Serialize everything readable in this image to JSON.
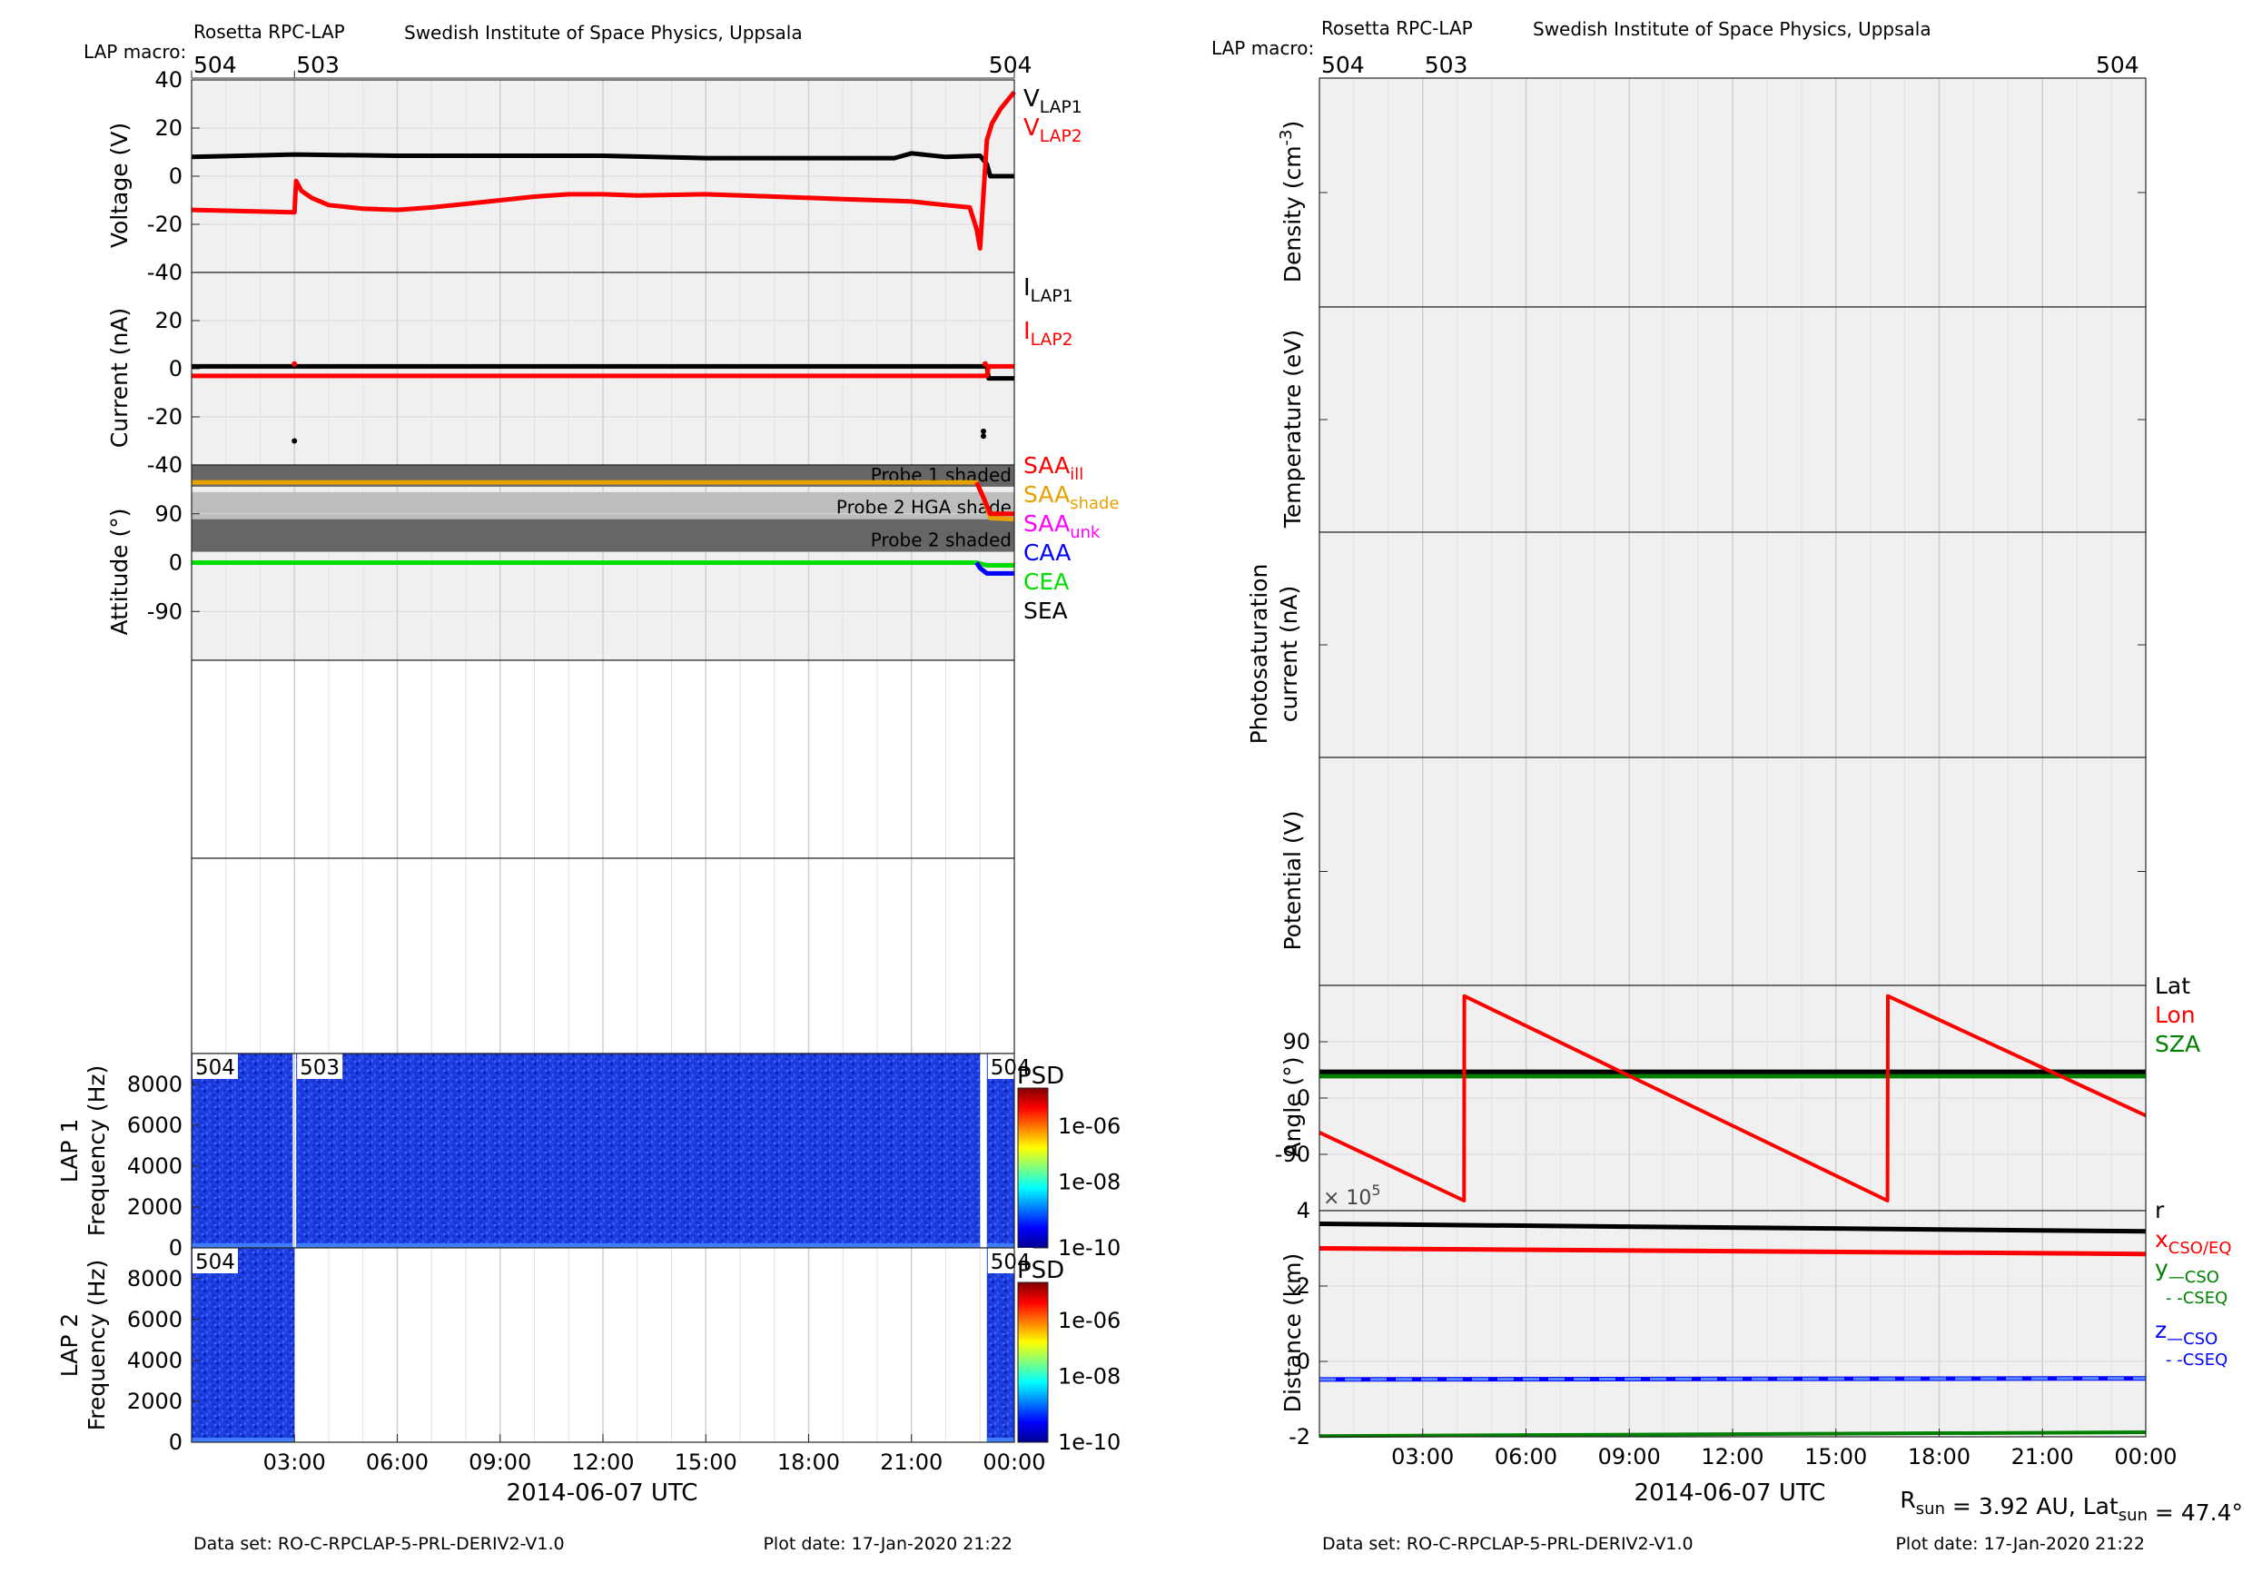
{
  "header": {
    "instrument": "Rosetta RPC-LAP",
    "institute": "Swedish Institute of Space Physics, Uppsala",
    "lap_macro_label": "LAP macro:"
  },
  "footer": {
    "dataset": "Data set: RO-C-RPCLAP-5-PRL-DERIV2-V1.0",
    "plot_date": "Plot date: 17-Jan-2020 21:22",
    "rsun_text": "R<sub>sun</sub> = 3.92 AU, Lat<sub>sun</sub> = 47.4°"
  },
  "time_axis": {
    "xlabel": "2014-06-07 UTC",
    "ticks": [
      3,
      6,
      9,
      12,
      15,
      18,
      21,
      24
    ],
    "tick_labels": [
      "03:00",
      "06:00",
      "09:00",
      "12:00",
      "15:00",
      "18:00",
      "21:00",
      "00:00"
    ],
    "range_hours": [
      0,
      24
    ]
  },
  "colors": {
    "panel_bg": "#f0f0f0",
    "black": "#000000",
    "red": "#ff0000",
    "orange": "#e6a000",
    "magenta": "#ff00ff",
    "blue": "#0000ff",
    "green": "#00dd00",
    "dark_green": "#008000",
    "shade_dark": "#666666",
    "shade_light": "#bdbdbd"
  },
  "chart_data": [
    {
      "id": "left-macro",
      "type": "annotation",
      "labels": [
        {
          "t": 0.0,
          "text": "504"
        },
        {
          "t": 3.0,
          "text": "503"
        },
        {
          "t": 23.2,
          "text": "504"
        }
      ]
    },
    {
      "id": "voltage",
      "type": "line",
      "ylabel": "Voltage (V)",
      "ylim": [
        -40,
        40
      ],
      "yticks": [
        -40,
        -20,
        0,
        20,
        40
      ],
      "legend": [
        {
          "text": "V",
          "sub": "LAP1",
          "color": "#000000"
        },
        {
          "text": "V",
          "sub": "LAP2",
          "color": "#ff0000"
        }
      ],
      "series": [
        {
          "name": "VLAP1",
          "color": "#000000",
          "x": [
            0,
            3,
            6,
            9,
            12,
            15,
            18,
            20.5,
            21,
            22,
            23,
            23.2,
            23.3,
            24
          ],
          "y": [
            8,
            9,
            8.5,
            8.5,
            8.5,
            7.5,
            7.5,
            7.5,
            9.5,
            8,
            8.5,
            5,
            0,
            0
          ]
        },
        {
          "name": "VLAP2",
          "color": "#ff0000",
          "x": [
            0,
            3.0,
            3.05,
            3.2,
            3.5,
            4,
            5,
            6,
            7,
            8,
            9,
            10,
            11,
            12,
            13,
            15,
            17,
            19,
            21,
            22,
            22.7,
            22.9,
            23.0,
            23.2,
            23.35,
            23.6,
            24
          ],
          "y": [
            -14,
            -15,
            -2,
            -6,
            -9,
            -12,
            -13.5,
            -14,
            -13,
            -11.5,
            -10,
            -8.5,
            -7.5,
            -7.5,
            -8,
            -7.5,
            -8.5,
            -9.5,
            -10.5,
            -12,
            -13,
            -22,
            -30,
            15,
            22,
            28,
            35
          ]
        }
      ]
    },
    {
      "id": "current",
      "type": "line",
      "ylabel": "Current (nA)",
      "ylim": [
        -40,
        40
      ],
      "yticks": [
        -40,
        -20,
        0,
        20
      ],
      "legend": [
        {
          "text": "I",
          "sub": "LAP1",
          "color": "#000000"
        },
        {
          "text": "I",
          "sub": "LAP2",
          "color": "#ff0000"
        }
      ],
      "series": [
        {
          "name": "ILAP1",
          "color": "#000000",
          "x": [
            0,
            23.2,
            23.25,
            24
          ],
          "y": [
            1,
            1,
            -4,
            -4
          ]
        },
        {
          "name": "ILAP2",
          "color": "#ff0000",
          "x": [
            0,
            23.2,
            23.25,
            24
          ],
          "y": [
            -3,
            -3,
            1,
            1
          ]
        }
      ],
      "outliers": [
        {
          "x": 3.0,
          "y": -30,
          "color": "#000000"
        },
        {
          "x": 3.0,
          "y": 2,
          "color": "#ff0000"
        },
        {
          "x": 23.1,
          "y": -26,
          "color": "#000000"
        },
        {
          "x": 23.1,
          "y": -28,
          "color": "#000000"
        },
        {
          "x": 23.15,
          "y": 2,
          "color": "#ff0000"
        }
      ]
    },
    {
      "id": "attitude",
      "type": "line",
      "ylabel": "Attitude (°)",
      "ylim": [
        -180,
        180
      ],
      "yticks": [
        -90,
        0,
        90
      ],
      "shaded_bands": [
        {
          "y": [
            140,
            180
          ],
          "kind": "dark",
          "label": "Probe 1 shaded"
        },
        {
          "y": [
            115,
            130
          ],
          "kind": "light",
          "label": ""
        },
        {
          "y": [
            80,
            115
          ],
          "kind": "light",
          "label": "Probe 2 HGA shade"
        },
        {
          "y": [
            20,
            80
          ],
          "kind": "dark",
          "label": "Probe 2 shaded"
        }
      ],
      "legend": [
        {
          "text": "SAA",
          "sub": "ill",
          "color": "#ff0000"
        },
        {
          "text": "SAA",
          "sub": "shade",
          "color": "#e6a000"
        },
        {
          "text": "SAA",
          "sub": "unk",
          "color": "#ff00ff"
        },
        {
          "text": "CAA",
          "sub": "",
          "color": "#0000ff"
        },
        {
          "text": "CEA",
          "sub": "",
          "color": "#00dd00"
        },
        {
          "text": "SEA",
          "sub": "",
          "color": "#000000"
        }
      ],
      "series": [
        {
          "name": "SAA shade",
          "color": "#e6a000",
          "x": [
            0,
            22.9,
            23.1,
            23.3,
            24
          ],
          "y": [
            148,
            148,
            120,
            82,
            80
          ]
        },
        {
          "name": "SAA ill",
          "color": "#ff0000",
          "x": [
            22.9,
            23.1,
            23.3,
            24
          ],
          "y": [
            148,
            120,
            90,
            90
          ]
        },
        {
          "name": "CEA",
          "color": "#00dd00",
          "x": [
            0,
            22.9,
            23.2,
            24
          ],
          "y": [
            0,
            0,
            -5,
            -5
          ]
        },
        {
          "name": "CAA",
          "color": "#0000ff",
          "x": [
            22.9,
            23.0,
            23.2,
            24
          ],
          "y": [
            0,
            -10,
            -20,
            -20
          ]
        }
      ]
    },
    {
      "id": "spectrogram-lap1",
      "type": "heatmap",
      "panel_label": "LAP 1",
      "ylabel": "Frequency (Hz)",
      "ylim": [
        0,
        9500
      ],
      "yticks": [
        0,
        2000,
        4000,
        6000,
        8000
      ],
      "colorbar": {
        "label": "PSD",
        "ticks": [
          "1e-06",
          "1e-08",
          "1e-10"
        ]
      },
      "coverage": [
        [
          0,
          2.95
        ],
        [
          3.05,
          23.0
        ],
        [
          23.2,
          24
        ]
      ],
      "labels": [
        {
          "t": 0.0,
          "text": "504"
        },
        {
          "t": 3.05,
          "text": "503"
        },
        {
          "t": 23.2,
          "text": "504"
        }
      ]
    },
    {
      "id": "spectrogram-lap2",
      "type": "heatmap",
      "panel_label": "LAP 2",
      "ylabel": "Frequency (Hz)",
      "ylim": [
        0,
        9500
      ],
      "yticks": [
        0,
        2000,
        4000,
        6000,
        8000
      ],
      "colorbar": {
        "label": "PSD",
        "ticks": [
          "1e-06",
          "1e-08",
          "1e-10"
        ]
      },
      "coverage": [
        [
          0,
          3.0
        ],
        [
          23.2,
          24
        ]
      ],
      "labels": [
        {
          "t": 0.0,
          "text": "504"
        },
        {
          "t": 23.2,
          "text": "504"
        }
      ]
    },
    {
      "id": "right-macro",
      "type": "annotation",
      "labels": [
        {
          "t": 0.0,
          "text": "504"
        },
        {
          "t": 3.0,
          "text": "503"
        },
        {
          "t": 23.0,
          "text": "504"
        }
      ]
    },
    {
      "id": "density",
      "type": "line",
      "ylabel": "Density (cm",
      "ylabel_sup": "-3",
      "ylabel_tail": ")",
      "series": []
    },
    {
      "id": "temperature",
      "type": "line",
      "ylabel": "Temperature (eV)",
      "series": []
    },
    {
      "id": "photosat",
      "type": "line",
      "ylabel": "Photosaturation",
      "ylabel2": "current (nA)",
      "series": []
    },
    {
      "id": "potential",
      "type": "line",
      "ylabel": "Potential (V)",
      "series": []
    },
    {
      "id": "angle",
      "type": "line",
      "ylabel": "Angle (°)",
      "ylim": [
        -180,
        180
      ],
      "yticks": [
        -90,
        0,
        90
      ],
      "legend": [
        {
          "text": "Lat",
          "color": "#000000"
        },
        {
          "text": "Lon",
          "color": "#ff0000"
        },
        {
          "text": "SZA",
          "color": "#008000"
        }
      ],
      "series": [
        {
          "name": "SZA",
          "color": "#008000",
          "x": [
            0,
            24
          ],
          "y": [
            35,
            35
          ]
        },
        {
          "name": "Lat",
          "color": "#000000",
          "x": [
            0,
            24
          ],
          "y": [
            42,
            42
          ]
        },
        {
          "name": "Lon",
          "color": "#ff0000",
          "x": [
            0,
            4.2,
            4.21,
            16.5,
            16.51,
            24
          ],
          "y": [
            -55,
            -164,
            163,
            -164,
            163,
            -28
          ]
        }
      ]
    },
    {
      "id": "distance",
      "type": "line",
      "ylabel": "Distance (km)",
      "ylim": [
        -2,
        4
      ],
      "yticks": [
        -2,
        0,
        2,
        4
      ],
      "multiplier": "× 10",
      "multiplier_exp": "5",
      "legend": [
        {
          "text": "r",
          "sub": "",
          "color": "#000000"
        },
        {
          "text": "x",
          "sub": "CSO/EQ",
          "color": "#ff0000"
        },
        {
          "text": "y",
          "sub": "—CSO",
          "sub2": "- -CSEQ",
          "color": "#008000"
        },
        {
          "text": "z",
          "sub": "—CSO",
          "sub2": "- -CSEQ",
          "color": "#0000ff"
        }
      ],
      "series": [
        {
          "name": "r",
          "color": "#000000",
          "x": [
            0,
            24
          ],
          "y": [
            3.65,
            3.45
          ]
        },
        {
          "name": "xCSO/EQ",
          "color": "#ff0000",
          "x": [
            0,
            24
          ],
          "y": [
            3.0,
            2.85
          ]
        },
        {
          "name": "zCSO",
          "color": "#0000ff",
          "x": [
            0,
            24
          ],
          "y": [
            -0.48,
            -0.45
          ]
        },
        {
          "name": "yCSO",
          "color": "#008000",
          "x": [
            0,
            24
          ],
          "y": [
            -1.98,
            -1.88
          ]
        }
      ]
    }
  ]
}
